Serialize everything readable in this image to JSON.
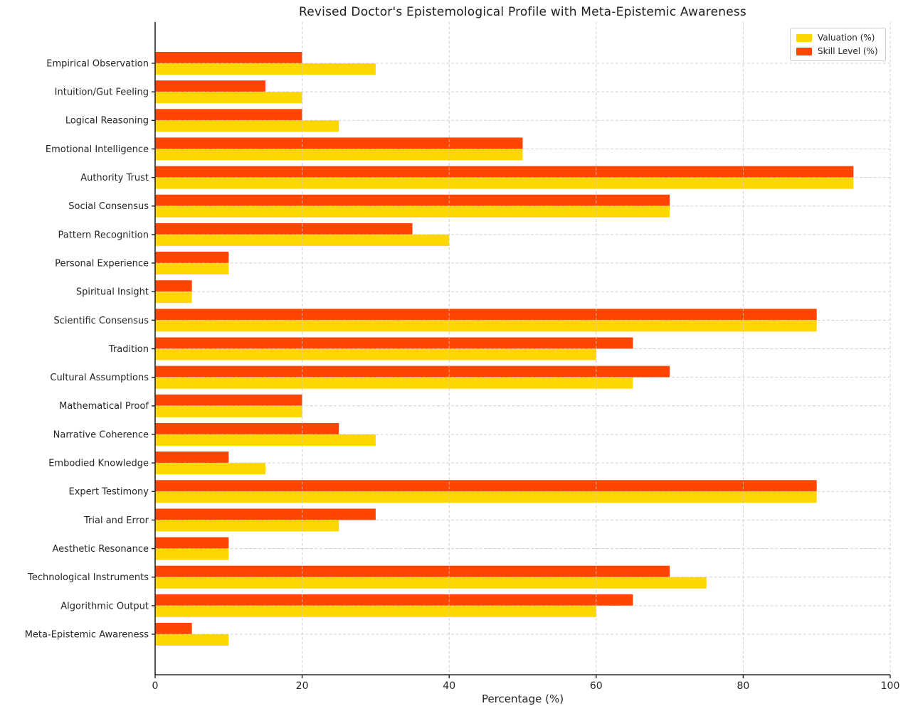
{
  "chart_data": {
    "type": "bar",
    "orientation": "horizontal",
    "title": "Revised Doctor's Epistemological Profile with Meta-Epistemic Awareness",
    "xlabel": "Percentage (%)",
    "xlim": [
      0,
      100
    ],
    "xticks": [
      0,
      20,
      40,
      60,
      80,
      100
    ],
    "grid": "dashed light-gray gridlines on both axes, drawn over bars",
    "legend_position": "upper right",
    "categories": [
      "Empirical Observation",
      "Intuition/Gut Feeling",
      "Logical Reasoning",
      "Emotional Intelligence",
      "Authority Trust",
      "Social Consensus",
      "Pattern Recognition",
      "Personal Experience",
      "Spiritual Insight",
      "Scientific Consensus",
      "Tradition",
      "Cultural Assumptions",
      "Mathematical Proof",
      "Narrative Coherence",
      "Embodied Knowledge",
      "Expert Testimony",
      "Trial and Error",
      "Aesthetic Resonance",
      "Technological Instruments",
      "Algorithmic Output",
      "Meta-Epistemic Awareness"
    ],
    "series": [
      {
        "name": "Valuation (%)",
        "color": "#FFD700",
        "values": [
          30,
          20,
          25,
          50,
          95,
          70,
          40,
          10,
          5,
          90,
          60,
          65,
          20,
          30,
          15,
          90,
          25,
          10,
          75,
          60,
          10
        ]
      },
      {
        "name": "Skill Level (%)",
        "color": "#FF4500",
        "values": [
          20,
          15,
          20,
          50,
          95,
          70,
          35,
          10,
          5,
          90,
          65,
          70,
          20,
          25,
          10,
          90,
          30,
          10,
          70,
          65,
          5
        ]
      }
    ]
  }
}
